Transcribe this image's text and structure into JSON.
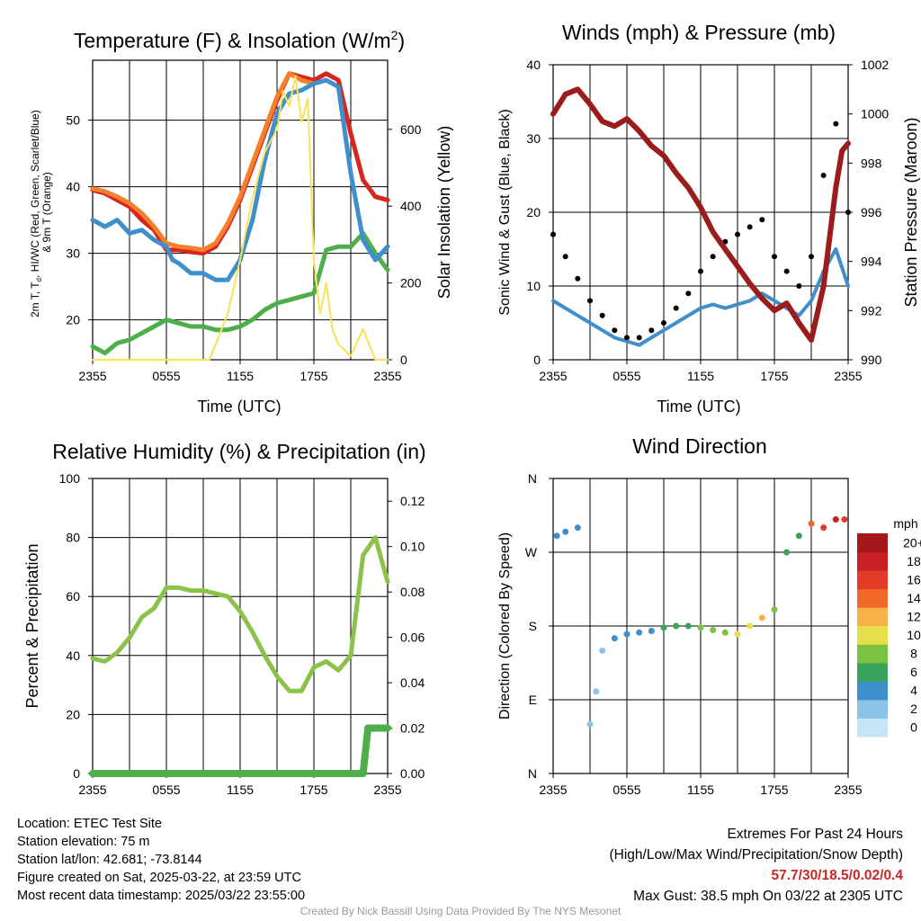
{
  "charts": {
    "temp": {
      "title": "Temperature (F) & Insolation (W/m2)",
      "ylabel_lines": [
        "2m T, Td, HI/WC (Red, Green, Scarlet/Blue)",
        "& 9m T (Orange)"
      ],
      "ylabel2": "Solar Insolation (Yellow)",
      "xlabel": "Time (UTC)"
    },
    "wind": {
      "title": "Winds (mph) & Pressure (mb)",
      "ylabel": "Sonic Wind & Gust (Blue, Black)",
      "ylabel2": "Station Pressure (Maroon)",
      "xlabel": "Time (UTC)"
    },
    "rh": {
      "title": "Relative Humidity (%) & Precipitation (in)",
      "ylabel": "Percent & Precipitation"
    },
    "dir": {
      "title": "Wind Direction",
      "ylabel": "Direction (Colored By Speed)",
      "colorbar_title": "mph"
    }
  },
  "chart_data": [
    {
      "id": "temp",
      "type": "line",
      "title": "Temperature (F) & Insolation (W/m2)",
      "xlabel": "Time (UTC)",
      "x_ticks": [
        "2355",
        "0555",
        "1155",
        "1755",
        "2355"
      ],
      "x_range_hours": [
        0,
        24
      ],
      "y_ticks": [
        20,
        30,
        40,
        50
      ],
      "ylim": [
        14,
        59
      ],
      "y2_ticks": [
        0,
        200,
        400,
        600
      ],
      "y2lim": [
        0,
        780
      ],
      "series": [
        {
          "name": "2m T",
          "color": "#d7261e",
          "axis": "left",
          "x": [
            0,
            1,
            2,
            3,
            4,
            5,
            6,
            7,
            8,
            9,
            10,
            11,
            12,
            13,
            14,
            15,
            15.5,
            16,
            17,
            18,
            19,
            20,
            21,
            22,
            23,
            24
          ],
          "y": [
            39.5,
            39,
            38,
            37,
            35,
            33.5,
            30.5,
            30.5,
            30.2,
            30,
            31,
            34,
            38,
            43,
            48,
            53,
            55,
            57,
            56.5,
            56,
            57,
            56,
            48,
            41,
            38.5,
            38
          ]
        },
        {
          "name": "9m T",
          "color": "#f57f2a",
          "axis": "left",
          "x": [
            0,
            1,
            2,
            3,
            4,
            5,
            6,
            7,
            8,
            9,
            10,
            11,
            12,
            13,
            14,
            15,
            16,
            17,
            18
          ],
          "y": [
            39.7,
            39.3,
            38.5,
            37.5,
            36,
            34,
            31.5,
            31,
            30.8,
            30.5,
            31.5,
            34.5,
            38.5,
            43.5,
            48.5,
            53.5,
            57,
            56,
            55.5
          ]
        },
        {
          "name": "Td",
          "color": "#4daf4a",
          "axis": "left",
          "x": [
            0,
            1,
            2,
            3,
            4,
            5,
            6,
            7,
            8,
            9,
            10,
            11,
            12,
            13,
            14,
            15,
            16,
            17,
            18,
            19,
            20,
            21,
            22,
            23,
            24
          ],
          "y": [
            16,
            15,
            16.5,
            17,
            18,
            19,
            20,
            19.5,
            19,
            19,
            18.5,
            18.5,
            19,
            20,
            21.5,
            22.5,
            23,
            23.5,
            24,
            30.5,
            31,
            31,
            33,
            30,
            27.5
          ]
        },
        {
          "name": "HI/WC",
          "color": "#3f8fcc",
          "axis": "left",
          "x": [
            0,
            1,
            2,
            3,
            4,
            5,
            6,
            6.5,
            7,
            8,
            9,
            10,
            11,
            12,
            13,
            14,
            15,
            16,
            17,
            18,
            19,
            20,
            21,
            22,
            23,
            24
          ],
          "y": [
            35,
            34,
            35,
            33,
            33.5,
            32,
            31,
            29,
            28.5,
            27,
            27,
            26,
            26,
            29,
            35,
            44,
            51,
            54,
            54.5,
            55.5,
            56,
            55,
            42,
            32,
            29,
            31
          ]
        },
        {
          "name": "Solar Insolation",
          "color": "#f7e25a",
          "axis": "right",
          "x": [
            0,
            1,
            5,
            8,
            9,
            9.5,
            10,
            11,
            12,
            13,
            14,
            15,
            15.5,
            16,
            16.5,
            17,
            17.5,
            18,
            18.5,
            19,
            19.5,
            20,
            21,
            22,
            23,
            24
          ],
          "y": [
            0,
            0,
            0,
            0,
            0,
            0,
            40,
            120,
            260,
            420,
            540,
            600,
            700,
            660,
            740,
            620,
            680,
            260,
            120,
            200,
            80,
            40,
            10,
            80,
            0,
            0
          ]
        }
      ]
    },
    {
      "id": "wind",
      "type": "line",
      "title": "Winds (mph) & Pressure (mb)",
      "xlabel": "Time (UTC)",
      "x_ticks": [
        "2355",
        "0555",
        "1155",
        "1755",
        "2355"
      ],
      "y_ticks": [
        0,
        10,
        20,
        30,
        40
      ],
      "ylim": [
        0,
        40
      ],
      "y2_ticks": [
        990,
        992,
        994,
        996,
        998,
        1000,
        1002
      ],
      "y2lim": [
        990,
        1002
      ],
      "series": [
        {
          "name": "Sonic Wind",
          "color": "#3f8fcc",
          "axis": "left",
          "x": [
            0,
            1,
            2,
            3,
            4,
            5,
            6,
            7,
            8,
            9,
            10,
            11,
            12,
            13,
            14,
            15,
            16,
            17,
            18,
            19,
            20,
            21,
            22,
            23,
            24
          ],
          "y": [
            8,
            7,
            6,
            5,
            4,
            3,
            2.5,
            2,
            3,
            4,
            5,
            6,
            7,
            7.5,
            7,
            7.5,
            8,
            9,
            8,
            7,
            6,
            8,
            12,
            15,
            10
          ]
        },
        {
          "name": "Gust",
          "color": "#000000",
          "axis": "left",
          "x": [
            0,
            1,
            2,
            3,
            4,
            5,
            6,
            7,
            8,
            9,
            10,
            11,
            12,
            13,
            14,
            15,
            16,
            17,
            18,
            19,
            20,
            21,
            22,
            23,
            24
          ],
          "y": [
            17,
            14,
            11,
            8,
            6,
            4,
            3,
            3,
            4,
            5,
            7,
            9,
            12,
            14,
            16,
            17,
            18,
            19,
            14,
            12,
            10,
            14,
            25,
            32,
            20
          ]
        },
        {
          "name": "Station Pressure",
          "color": "#9b1c1c",
          "axis": "right",
          "x": [
            0,
            1,
            2,
            3,
            4,
            5,
            6,
            7,
            8,
            9,
            10,
            11,
            12,
            13,
            14,
            15,
            16,
            17,
            18,
            19,
            20,
            21,
            22,
            23,
            23.5,
            24
          ],
          "y": [
            1000,
            1000.8,
            1001,
            1000.4,
            999.7,
            999.5,
            999.8,
            999.3,
            998.7,
            998.3,
            997.6,
            997,
            996.2,
            995.2,
            994.5,
            993.8,
            993.1,
            992.5,
            992,
            992.3,
            991.5,
            990.8,
            993,
            997,
            998.5,
            998.8
          ]
        }
      ]
    },
    {
      "id": "rh",
      "type": "line",
      "title": "Relative Humidity (%) & Precipitation (in)",
      "x_ticks": [
        "2355",
        "0555",
        "1155",
        "1755",
        "2355"
      ],
      "y_ticks": [
        0,
        20,
        40,
        60,
        80,
        100
      ],
      "ylim": [
        0,
        100
      ],
      "y2_ticks": [
        0.0,
        0.02,
        0.04,
        0.06,
        0.08,
        0.1,
        0.12
      ],
      "y2lim": [
        0,
        0.13
      ],
      "series": [
        {
          "name": "Relative Humidity",
          "color": "#8bc34a",
          "axis": "left",
          "x": [
            0,
            1,
            2,
            3,
            4,
            5,
            6,
            7,
            8,
            9,
            10,
            11,
            12,
            13,
            14,
            15,
            16,
            17,
            18,
            19,
            20,
            21,
            22,
            23,
            24
          ],
          "y": [
            39,
            38,
            41,
            46,
            53,
            56,
            63,
            63,
            62,
            62,
            61,
            60,
            55,
            48,
            40,
            33,
            28,
            28,
            36,
            38,
            35,
            40,
            74,
            80,
            65
          ]
        },
        {
          "name": "Precipitation",
          "color": "#4daf4a",
          "axis": "right",
          "x": [
            0,
            4,
            8,
            12,
            16,
            20,
            22,
            22.2,
            22.4,
            23,
            24
          ],
          "y": [
            0,
            0,
            0,
            0,
            0,
            0,
            0,
            0.01,
            0.02,
            0.02,
            0.02
          ]
        }
      ]
    },
    {
      "id": "dir",
      "type": "scatter",
      "title": "Wind Direction",
      "x_ticks": [
        "2355",
        "0555",
        "1155",
        "1755",
        "2355"
      ],
      "y_ticks": [
        "N",
        "E",
        "S",
        "W",
        "N"
      ],
      "ylim": [
        0,
        360
      ],
      "colorbar": {
        "title": "mph",
        "labels": [
          "0",
          "2",
          "4",
          "6",
          "8",
          "10",
          "12",
          "14",
          "16",
          "18",
          "20+"
        ],
        "colors": [
          "#c6e6f7",
          "#8cc4e8",
          "#3f8fcc",
          "#3aa35b",
          "#7cc242",
          "#e5e04a",
          "#f8b24a",
          "#f2682a",
          "#e33b2a",
          "#c81f25",
          "#a5171a"
        ]
      },
      "series": [
        {
          "name": "Wind Direction",
          "x": [
            0.3,
            1,
            2,
            3,
            3.5,
            4,
            5,
            6,
            7,
            8,
            9,
            10,
            11,
            12,
            13,
            14,
            15,
            16,
            17,
            18,
            19,
            20,
            21,
            22,
            23,
            23.7
          ],
          "y": [
            290,
            295,
            300,
            60,
            100,
            150,
            165,
            170,
            172,
            174,
            178,
            180,
            180,
            178,
            175,
            172,
            170,
            180,
            190,
            200,
            270,
            290,
            305,
            300,
            310,
            310
          ],
          "speed": [
            4,
            4,
            4,
            2,
            1,
            2,
            3,
            3,
            3,
            4,
            5,
            6,
            6,
            7,
            7,
            7,
            9,
            10,
            12,
            8,
            6,
            6,
            14,
            16,
            17,
            16
          ]
        }
      ]
    }
  ],
  "footer": {
    "location": "Location: ETEC Test Site",
    "elevation": "Station elevation: 75 m",
    "latlon": "Station lat/lon: 42.681; -73.8144",
    "created": "Figure created on Sat, 2025-03-22, at 23:59 UTC",
    "recent": "Most recent data timestamp: 2025/03/22 23:55:00",
    "extremes_title": "Extremes For Past 24 Hours",
    "extremes_legend": "(High/Low/Max Wind/Precipitation/Snow Depth)",
    "extremes_values": "57.7/30/18.5/0.02/0.4",
    "max_gust": "Max Gust: 38.5 mph On 03/22 at 2305 UTC",
    "credit": "Created By Nick Bassill Using Data Provided By The NYS Mesonet"
  }
}
